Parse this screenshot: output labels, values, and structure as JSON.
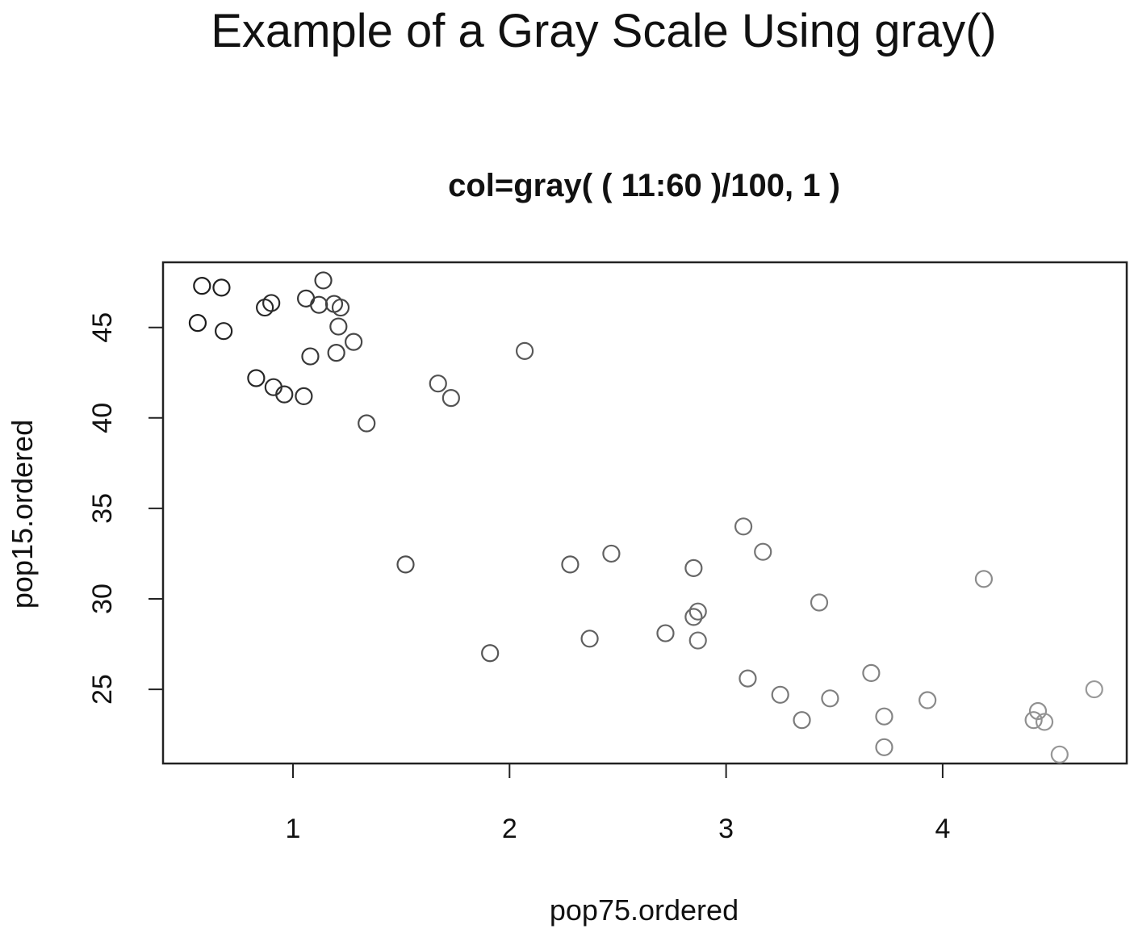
{
  "chart_data": {
    "type": "scatter",
    "title": "Example of a Gray Scale Using gray()",
    "subtitle": "col=gray( ( 11:60 )/100, 1 )",
    "xlabel": "pop75.ordered",
    "ylabel": "pop15.ordered",
    "xlim": [
      0.4,
      4.85
    ],
    "ylim": [
      20.9,
      48.6
    ],
    "xticks": [
      1,
      2,
      3,
      4
    ],
    "yticks": [
      25,
      30,
      35,
      40,
      45
    ],
    "xtick_labels": [
      "1",
      "2",
      "3",
      "4"
    ],
    "ytick_labels": [
      "25",
      "30",
      "35",
      "40",
      "45"
    ],
    "grid": false,
    "legend": "none",
    "marker": "open-circle",
    "gray_levels": {
      "from": 0.11,
      "to": 0.6,
      "alpha": 1
    },
    "points": [
      {
        "x": 0.56,
        "y": 45.25
      },
      {
        "x": 0.58,
        "y": 47.3
      },
      {
        "x": 0.67,
        "y": 47.2
      },
      {
        "x": 0.68,
        "y": 44.8
      },
      {
        "x": 0.83,
        "y": 42.2
      },
      {
        "x": 0.87,
        "y": 46.1
      },
      {
        "x": 0.9,
        "y": 46.35
      },
      {
        "x": 0.91,
        "y": 41.7
      },
      {
        "x": 0.96,
        "y": 41.3
      },
      {
        "x": 1.05,
        "y": 41.2
      },
      {
        "x": 1.06,
        "y": 46.6
      },
      {
        "x": 1.08,
        "y": 43.4
      },
      {
        "x": 1.12,
        "y": 46.25
      },
      {
        "x": 1.14,
        "y": 47.6
      },
      {
        "x": 1.19,
        "y": 46.3
      },
      {
        "x": 1.2,
        "y": 43.6
      },
      {
        "x": 1.21,
        "y": 45.05
      },
      {
        "x": 1.22,
        "y": 46.1
      },
      {
        "x": 1.28,
        "y": 44.2
      },
      {
        "x": 1.34,
        "y": 39.7
      },
      {
        "x": 1.52,
        "y": 31.9
      },
      {
        "x": 1.67,
        "y": 41.9
      },
      {
        "x": 1.73,
        "y": 41.1
      },
      {
        "x": 1.91,
        "y": 27.0
      },
      {
        "x": 2.07,
        "y": 43.7
      },
      {
        "x": 2.28,
        "y": 31.9
      },
      {
        "x": 2.37,
        "y": 27.8
      },
      {
        "x": 2.47,
        "y": 32.5
      },
      {
        "x": 2.72,
        "y": 28.1
      },
      {
        "x": 2.85,
        "y": 31.7
      },
      {
        "x": 2.85,
        "y": 29.0
      },
      {
        "x": 2.87,
        "y": 29.3
      },
      {
        "x": 2.87,
        "y": 27.7
      },
      {
        "x": 3.08,
        "y": 34.0
      },
      {
        "x": 3.1,
        "y": 25.6
      },
      {
        "x": 3.17,
        "y": 32.6
      },
      {
        "x": 3.25,
        "y": 24.7
      },
      {
        "x": 3.35,
        "y": 23.3
      },
      {
        "x": 3.43,
        "y": 29.8
      },
      {
        "x": 3.48,
        "y": 24.5
      },
      {
        "x": 3.67,
        "y": 25.9
      },
      {
        "x": 3.73,
        "y": 23.5
      },
      {
        "x": 3.73,
        "y": 21.8
      },
      {
        "x": 3.93,
        "y": 24.4
      },
      {
        "x": 4.19,
        "y": 31.1
      },
      {
        "x": 4.42,
        "y": 23.3
      },
      {
        "x": 4.44,
        "y": 23.8
      },
      {
        "x": 4.47,
        "y": 23.2
      },
      {
        "x": 4.54,
        "y": 21.4
      },
      {
        "x": 4.7,
        "y": 25.0
      }
    ]
  }
}
